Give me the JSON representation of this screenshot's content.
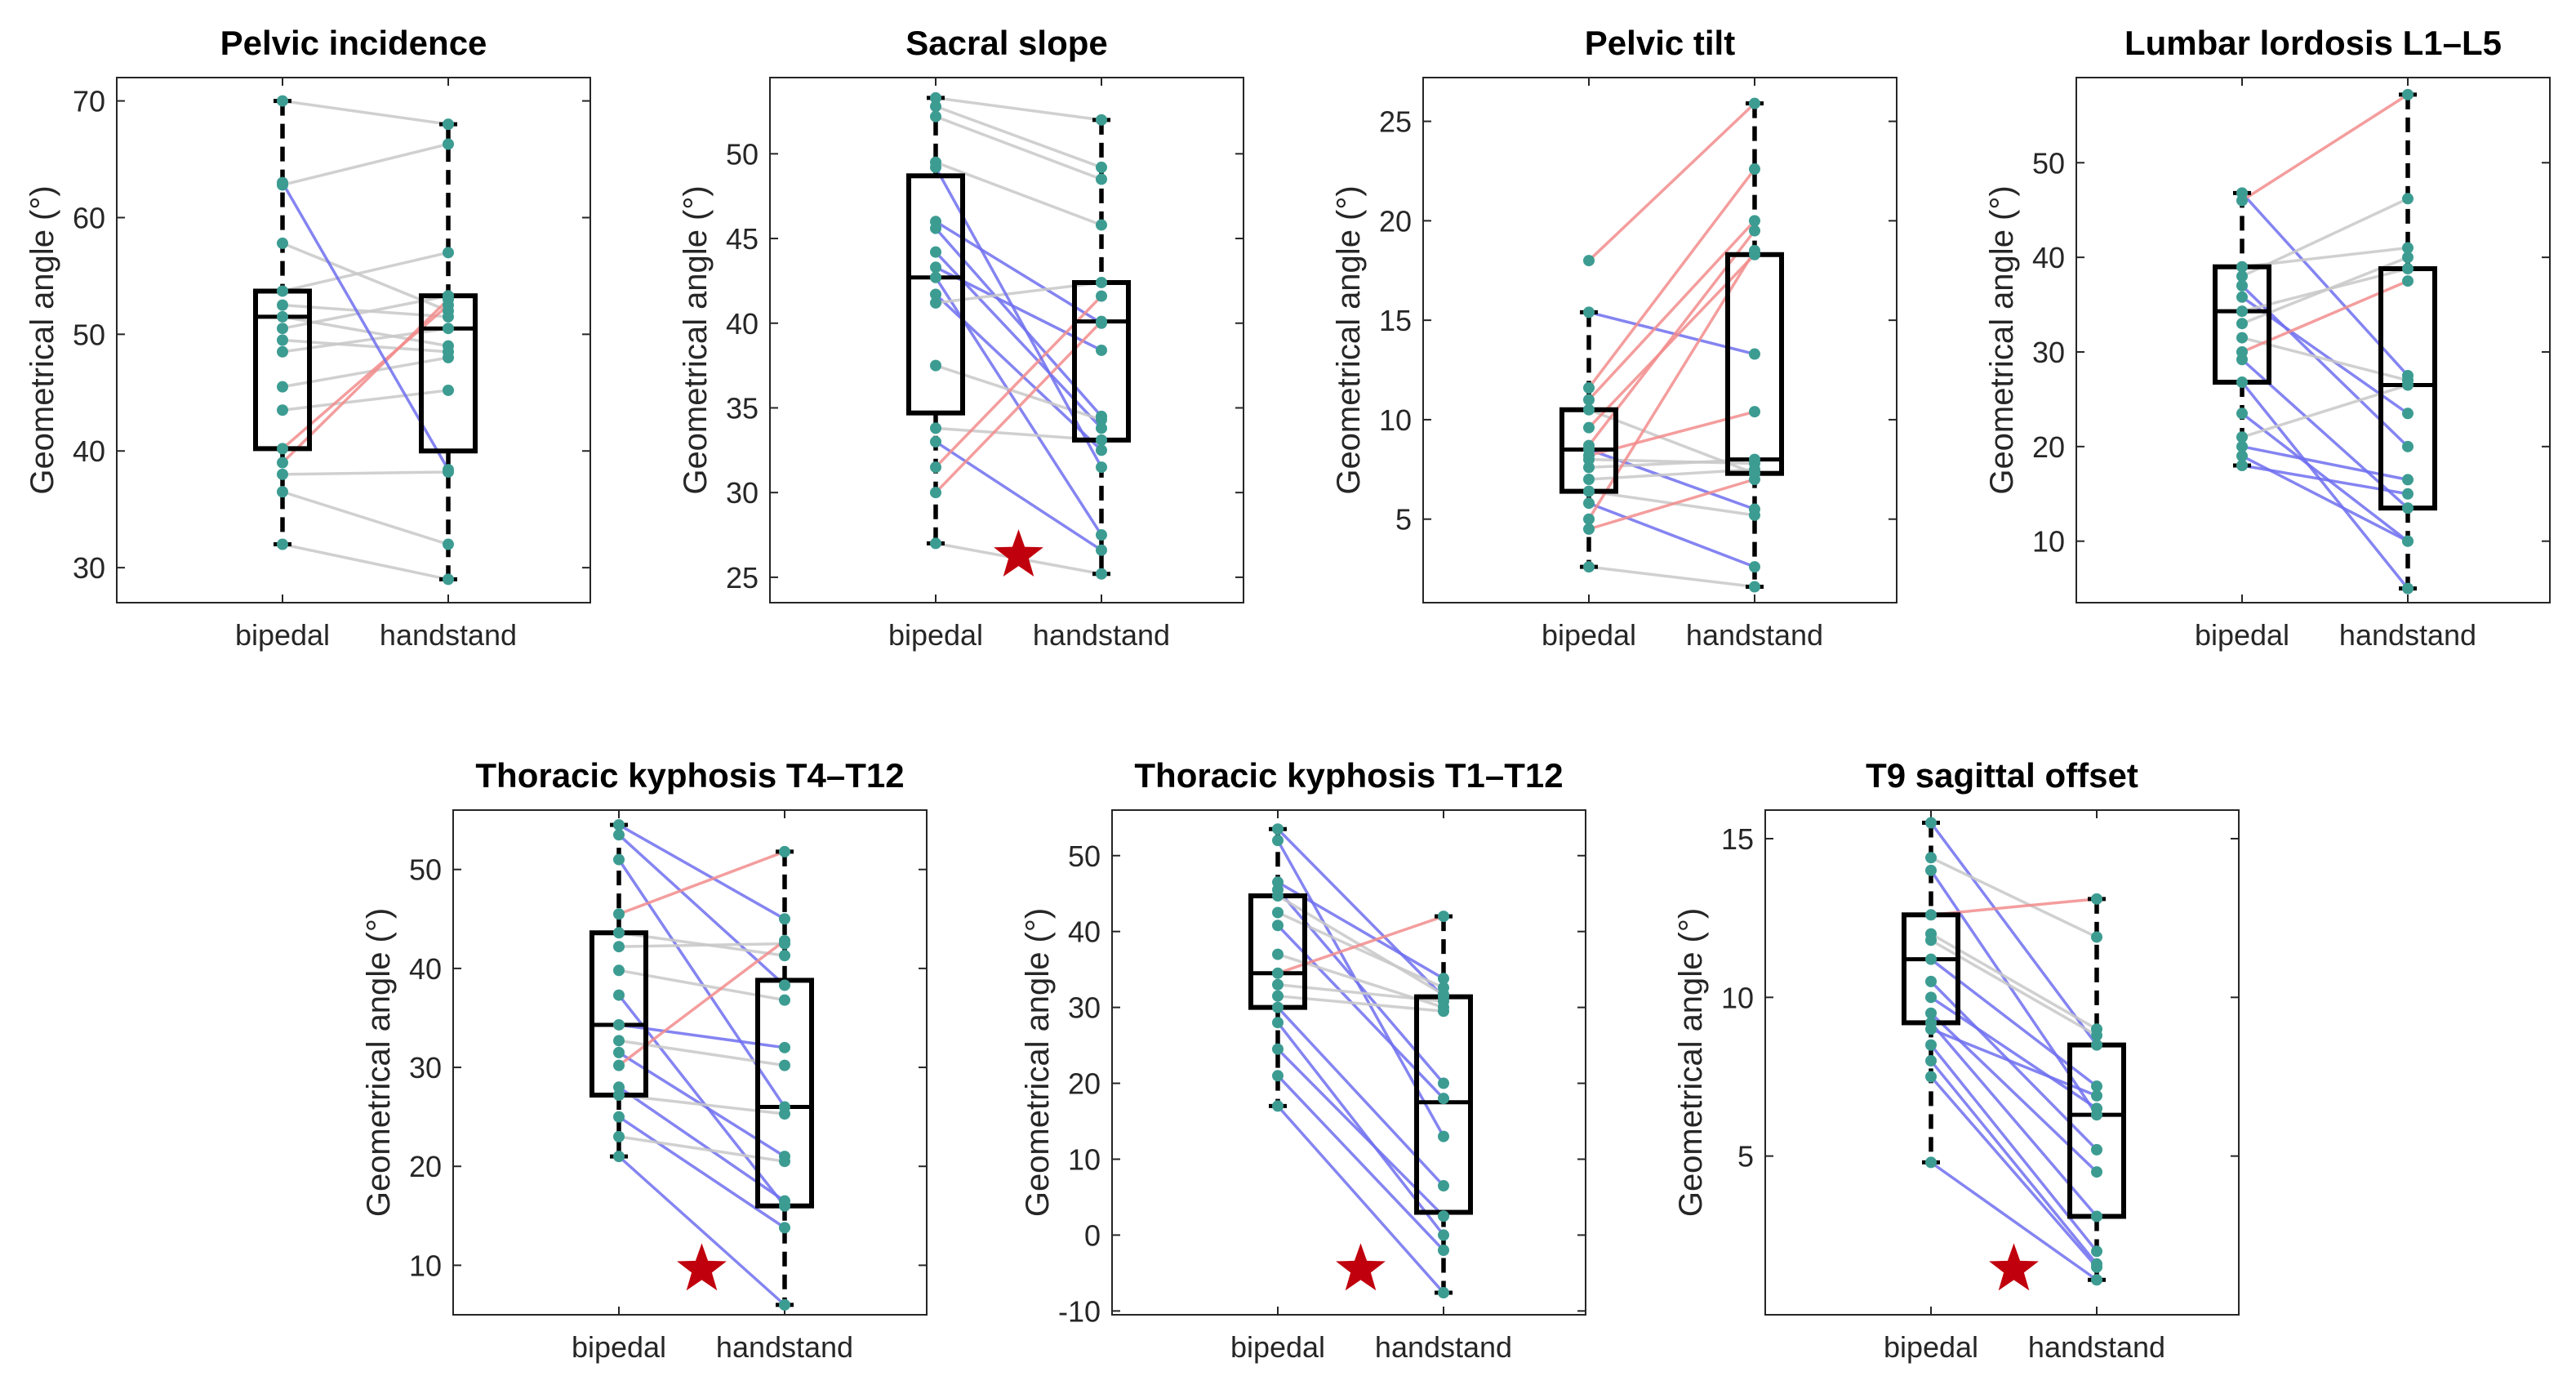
{
  "chart_data": [
    {
      "type": "box",
      "title": "Pelvic incidence",
      "ylabel": "Geometrical angle (°)",
      "categories": [
        "bipedal",
        "handstand"
      ],
      "ylim": [
        27,
        72
      ],
      "yticks": [
        30,
        40,
        50,
        60,
        70
      ],
      "significant": false,
      "box": {
        "bipedal": {
          "min": 32,
          "q1": 40.2,
          "median": 51.5,
          "q3": 53.7,
          "max": 70
        },
        "handstand": {
          "min": 29,
          "q1": 40,
          "median": 50.5,
          "q3": 53.3,
          "max": 68
        }
      },
      "pairs": [
        [
          70,
          68
        ],
        [
          62.8,
          66.3
        ],
        [
          57.8,
          52
        ],
        [
          53.7,
          57
        ],
        [
          52.5,
          51.5
        ],
        [
          51.5,
          49
        ],
        [
          50.5,
          53.3
        ],
        [
          49.5,
          48.5
        ],
        [
          48.5,
          50.5
        ],
        [
          45.5,
          48
        ],
        [
          43.5,
          45.2
        ],
        [
          40.2,
          52.5
        ],
        [
          39,
          53
        ],
        [
          38,
          38.2
        ],
        [
          36.5,
          32
        ],
        [
          32,
          29
        ],
        [
          63,
          38.4
        ]
      ],
      "pair_direction": [
        "none",
        "none",
        "none",
        "none",
        "none",
        "none",
        "none",
        "none",
        "none",
        "none",
        "none",
        "increase",
        "increase",
        "none",
        "none",
        "none",
        "decrease"
      ]
    },
    {
      "type": "box",
      "title": "Sacral slope",
      "ylabel": "Geometrical angle (°)",
      "categories": [
        "bipedal",
        "handstand"
      ],
      "ylim": [
        23.5,
        54.5
      ],
      "yticks": [
        25,
        30,
        35,
        40,
        45,
        50
      ],
      "significant": true,
      "box": {
        "bipedal": {
          "min": 27,
          "q1": 34.7,
          "median": 42.7,
          "q3": 48.7,
          "max": 53.3
        },
        "handstand": {
          "min": 25.2,
          "q1": 33.1,
          "median": 40.1,
          "q3": 42.4,
          "max": 52
        }
      },
      "pairs": [
        [
          53.3,
          52
        ],
        [
          52.8,
          49.2
        ],
        [
          52.2,
          48.5
        ],
        [
          49.5,
          45.8
        ],
        [
          46,
          40
        ],
        [
          45.6,
          34.5
        ],
        [
          44.2,
          33.8
        ],
        [
          43.3,
          38.4
        ],
        [
          42.7,
          27.5
        ],
        [
          41.7,
          32.5
        ],
        [
          41.2,
          42.4
        ],
        [
          37.5,
          34.3
        ],
        [
          33.8,
          33.1
        ],
        [
          33,
          26.6
        ],
        [
          31.5,
          41.6
        ],
        [
          30,
          40.1
        ],
        [
          27,
          25.2
        ],
        [
          49.2,
          31.5
        ]
      ],
      "pair_direction": [
        "none",
        "none",
        "none",
        "none",
        "decrease",
        "decrease",
        "decrease",
        "decrease",
        "decrease",
        "decrease",
        "none",
        "none",
        "none",
        "decrease",
        "increase",
        "increase",
        "none",
        "decrease"
      ]
    },
    {
      "type": "box",
      "title": "Pelvic tilt",
      "ylabel": "Geometrical angle (°)",
      "categories": [
        "bipedal",
        "handstand"
      ],
      "ylim": [
        0.8,
        27.2
      ],
      "yticks": [
        5,
        10,
        15,
        20,
        25
      ],
      "significant": false,
      "box": {
        "bipedal": {
          "min": 2.6,
          "q1": 6.4,
          "median": 8.5,
          "q3": 10.5,
          "max": 15.4
        },
        "handstand": {
          "min": 1.6,
          "q1": 7.3,
          "median": 8,
          "q3": 18.3,
          "max": 25.9
        }
      },
      "pairs": [
        [
          18,
          25.9
        ],
        [
          15.4,
          13.3
        ],
        [
          11.6,
          22.6
        ],
        [
          11,
          20
        ],
        [
          10.5,
          7.3
        ],
        [
          9.6,
          18.3
        ],
        [
          8.7,
          19.5
        ],
        [
          8.5,
          5.5
        ],
        [
          8.2,
          10.4
        ],
        [
          8,
          7.8
        ],
        [
          7.6,
          8
        ],
        [
          7,
          7.5
        ],
        [
          6.4,
          5.2
        ],
        [
          5.8,
          2.6
        ],
        [
          5,
          18.5
        ],
        [
          4.5,
          7
        ],
        [
          2.6,
          1.6
        ]
      ],
      "pair_direction": [
        "increase",
        "decrease",
        "increase",
        "increase",
        "none",
        "increase",
        "increase",
        "decrease",
        "increase",
        "none",
        "none",
        "none",
        "none",
        "decrease",
        "increase",
        "increase",
        "none"
      ]
    },
    {
      "type": "box",
      "title": "Lumbar lordosis L1–L5",
      "ylabel": "Geometrical angle (°)",
      "categories": [
        "bipedal",
        "handstand"
      ],
      "ylim": [
        3.5,
        59
      ],
      "yticks": [
        10,
        20,
        30,
        40,
        50
      ],
      "significant": false,
      "box": {
        "bipedal": {
          "min": 18,
          "q1": 26.8,
          "median": 34.3,
          "q3": 39,
          "max": 46.8
        },
        "handstand": {
          "min": 5,
          "q1": 13.5,
          "median": 26.5,
          "q3": 38.8,
          "max": 57.2
        }
      },
      "pairs": [
        [
          46.8,
          27.5
        ],
        [
          46,
          57.2
        ],
        [
          39,
          41
        ],
        [
          38,
          46.2
        ],
        [
          37,
          20
        ],
        [
          35.8,
          23.5
        ],
        [
          34.3,
          38.8
        ],
        [
          33,
          40
        ],
        [
          31.5,
          27
        ],
        [
          30,
          37.5
        ],
        [
          29.2,
          13.5
        ],
        [
          26.8,
          5
        ],
        [
          23.5,
          10
        ],
        [
          21,
          26.5
        ],
        [
          20,
          16.5
        ],
        [
          19,
          10
        ],
        [
          18,
          15
        ]
      ],
      "pair_direction": [
        "decrease",
        "increase",
        "none",
        "none",
        "decrease",
        "decrease",
        "none",
        "none",
        "none",
        "increase",
        "decrease",
        "decrease",
        "decrease",
        "none",
        "decrease",
        "decrease",
        "decrease"
      ]
    },
    {
      "type": "box",
      "title": "Thoracic kyphosis T4–T12",
      "ylabel": "Geometrical angle (°)",
      "categories": [
        "bipedal",
        "handstand"
      ],
      "ylim": [
        5,
        56
      ],
      "yticks": [
        10,
        20,
        30,
        40,
        50
      ],
      "significant": true,
      "box": {
        "bipedal": {
          "min": 21,
          "q1": 27.2,
          "median": 34.3,
          "q3": 43.6,
          "max": 54.5
        },
        "handstand": {
          "min": 6,
          "q1": 16,
          "median": 26,
          "q3": 38.8,
          "max": 51.8
        }
      },
      "pairs": [
        [
          54.5,
          45
        ],
        [
          53.5,
          38.3
        ],
        [
          51,
          26
        ],
        [
          45.5,
          51.8
        ],
        [
          43.6,
          41.3
        ],
        [
          42.2,
          42.5
        ],
        [
          39.8,
          36.8
        ],
        [
          37.3,
          16
        ],
        [
          34.3,
          32
        ],
        [
          32.7,
          30.2
        ],
        [
          31.5,
          21
        ],
        [
          30.2,
          42.8
        ],
        [
          28,
          16.5
        ],
        [
          27.2,
          25.3
        ],
        [
          25,
          13.8
        ],
        [
          23,
          20.5
        ],
        [
          21,
          6
        ]
      ],
      "pair_direction": [
        "decrease",
        "decrease",
        "decrease",
        "increase",
        "none",
        "none",
        "none",
        "decrease",
        "decrease",
        "none",
        "decrease",
        "increase",
        "decrease",
        "none",
        "decrease",
        "none",
        "decrease"
      ]
    },
    {
      "type": "box",
      "title": "Thoracic kyphosis T1–T12",
      "ylabel": "Geometrical angle (°)",
      "categories": [
        "bipedal",
        "handstand"
      ],
      "ylim": [
        -10.5,
        56
      ],
      "yticks": [
        -10,
        0,
        10,
        20,
        30,
        40,
        50
      ],
      "significant": true,
      "box": {
        "bipedal": {
          "min": 17,
          "q1": 30,
          "median": 34.5,
          "q3": 44.7,
          "max": 53.5
        },
        "handstand": {
          "min": -7.6,
          "q1": 3,
          "median": 17.5,
          "q3": 31.4,
          "max": 42
        }
      },
      "pairs": [
        [
          53.5,
          31.4
        ],
        [
          52,
          13
        ],
        [
          46.5,
          33.8
        ],
        [
          45.5,
          20
        ],
        [
          44.7,
          31.7
        ],
        [
          42.5,
          32.6
        ],
        [
          40.8,
          18
        ],
        [
          37,
          30
        ],
        [
          34.5,
          42
        ],
        [
          33,
          30.8
        ],
        [
          31.5,
          29.5
        ],
        [
          30,
          6.5
        ],
        [
          28,
          0
        ],
        [
          24.5,
          2.5
        ],
        [
          21,
          -2
        ],
        [
          17,
          -7.6
        ]
      ],
      "pair_direction": [
        "decrease",
        "decrease",
        "decrease",
        "decrease",
        "none",
        "none",
        "decrease",
        "none",
        "increase",
        "none",
        "none",
        "decrease",
        "decrease",
        "decrease",
        "decrease",
        "decrease"
      ]
    },
    {
      "type": "box",
      "title": "T9 sagittal offset",
      "ylabel": "Geometrical angle (°)",
      "categories": [
        "bipedal",
        "handstand"
      ],
      "ylim": [
        0,
        15.9
      ],
      "yticks": [
        5,
        10,
        15
      ],
      "significant": true,
      "box": {
        "bipedal": {
          "min": 4.8,
          "q1": 9.2,
          "median": 11.2,
          "q3": 12.6,
          "max": 15.5
        },
        "handstand": {
          "min": 1.1,
          "q1": 3.1,
          "median": 6.3,
          "q3": 8.5,
          "max": 13.1
        }
      },
      "pairs": [
        [
          15.5,
          8.5
        ],
        [
          14.4,
          11.9
        ],
        [
          14,
          6.3
        ],
        [
          12.6,
          13.1
        ],
        [
          12,
          9
        ],
        [
          11.8,
          8.8
        ],
        [
          11.2,
          7.2
        ],
        [
          10.5,
          5.2
        ],
        [
          10,
          6.5
        ],
        [
          9.5,
          4.5
        ],
        [
          9.2,
          3.1
        ],
        [
          9,
          6.9
        ],
        [
          8.5,
          2
        ],
        [
          8,
          1.6
        ],
        [
          7.5,
          1.5
        ],
        [
          4.8,
          1.1
        ]
      ],
      "pair_direction": [
        "decrease",
        "none",
        "decrease",
        "increase",
        "none",
        "none",
        "decrease",
        "decrease",
        "decrease",
        "decrease",
        "decrease",
        "decrease",
        "decrease",
        "decrease",
        "decrease",
        "decrease"
      ]
    }
  ],
  "colors": {
    "box": "#000000",
    "dot": "#3c9c92",
    "increase_line": "#f28c8c",
    "decrease_line": "#6e6ef0",
    "none_line": "#c8c8c8",
    "star": "#c0000d",
    "axis": "#262626"
  }
}
